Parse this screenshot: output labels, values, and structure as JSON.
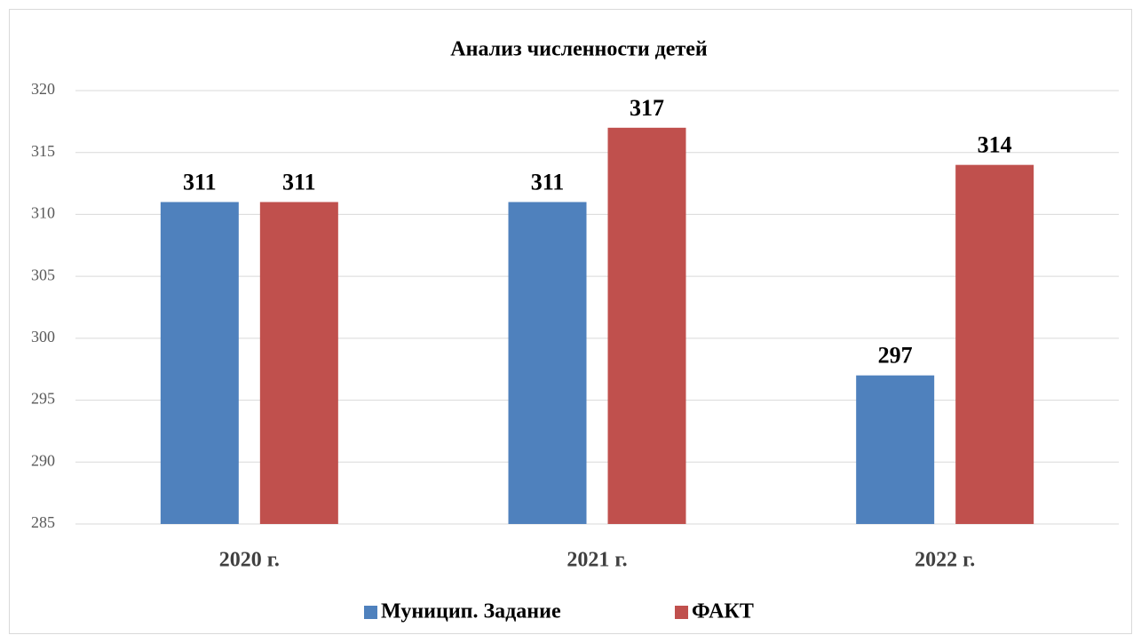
{
  "chart_data": {
    "type": "bar",
    "title": "Анализ численности детей",
    "categories": [
      "2020 г.",
      "2021 г.",
      "2022 г."
    ],
    "series": [
      {
        "name": "Муницип. Задание",
        "color": "#4f81bd",
        "values": [
          311,
          311,
          297
        ]
      },
      {
        "name": "ФАКТ",
        "color": "#c0504d",
        "values": [
          311,
          317,
          314
        ]
      }
    ],
    "ylim": [
      285,
      320
    ],
    "yticks": [
      285,
      290,
      295,
      300,
      305,
      310,
      315,
      320
    ],
    "grid": true,
    "legend": "bottom"
  }
}
